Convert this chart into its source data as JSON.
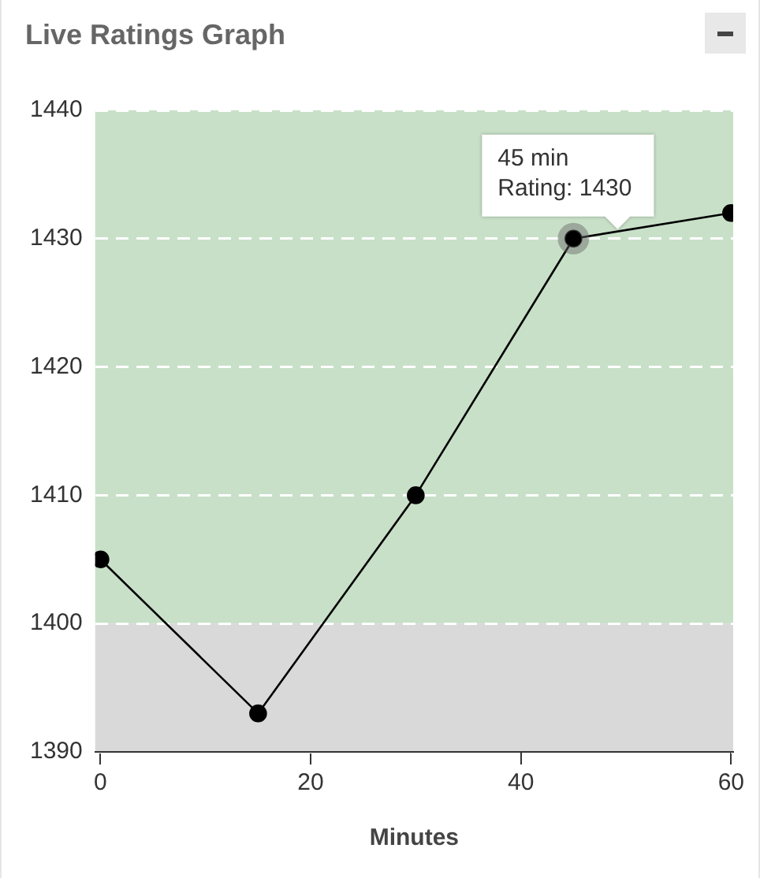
{
  "chart_data": {
    "type": "line",
    "title": "Live Ratings Graph",
    "xlabel": "Minutes",
    "x": [
      0,
      15,
      30,
      45,
      60
    ],
    "series": [
      {
        "color": "#000000",
        "values": [
          1405,
          1393,
          1410,
          1430,
          1432
        ]
      }
    ],
    "xlim": [
      -0.5,
      60.2
    ],
    "xticks": [
      0,
      20,
      40,
      60
    ],
    "ylim": [
      1390,
      1440
    ],
    "yticks": [
      1390,
      1400,
      1410,
      1420,
      1430,
      1440
    ],
    "grid": "y",
    "marker": "circle",
    "line_style": "solid",
    "bands": [
      {
        "axis": "y",
        "from": 1400,
        "to": 1440,
        "color": "#c8e0c8"
      },
      {
        "axis": "y",
        "from": 1390,
        "to": 1400,
        "color": "#d9d9d9"
      }
    ],
    "annotations": [
      {
        "text": "45 min",
        "x": 45,
        "y": 1430
      },
      {
        "text": "Rating: 1430",
        "x": 45,
        "y": 1430
      }
    ]
  }
}
